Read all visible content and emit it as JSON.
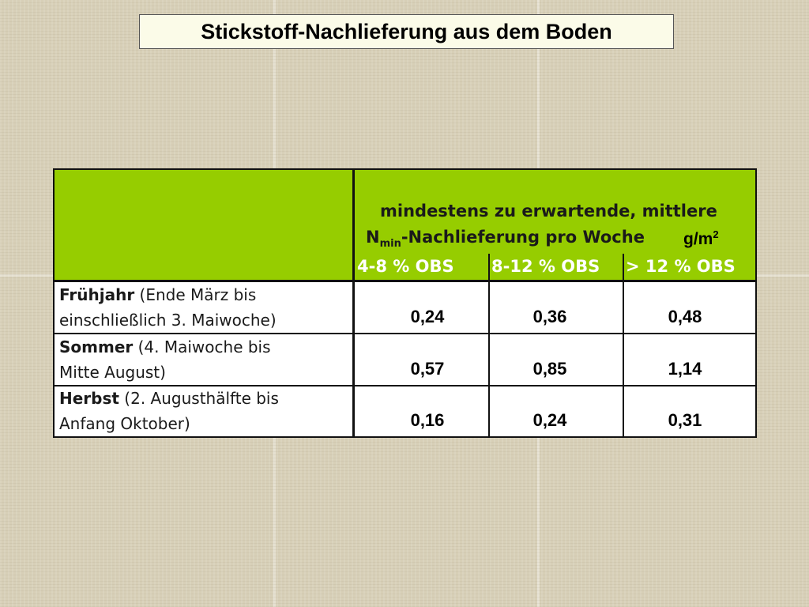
{
  "title": "Stickstoff-Nachlieferung aus dem Boden",
  "table": {
    "header": {
      "caption_line1": "mindestens zu erwartende, mittlere",
      "caption_line2_prefix": "N",
      "caption_line2_subscript": "min",
      "caption_line2_suffix": "-Nachlieferung pro Woche",
      "unit_base": "g/m",
      "unit_exponent": "2",
      "columns": [
        "4-8 % OBS",
        "8-12 % OBS",
        "> 12 % OBS"
      ]
    },
    "rows": [
      {
        "season": "Frühjahr",
        "period_line1": " (Ende März bis",
        "period_line2": "einschließlich 3. Maiwoche)",
        "values": [
          "0,24",
          "0,36",
          "0,48"
        ]
      },
      {
        "season": "Sommer",
        "period_line1": " (4. Maiwoche bis",
        "period_line2": "Mitte August)",
        "values": [
          "0,57",
          "0,85",
          "1,14"
        ]
      },
      {
        "season": "Herbst",
        "period_line1": " (2. Augusthälfte bis",
        "period_line2": "Anfang Oktober)",
        "values": [
          "0,16",
          "0,24",
          "0,31"
        ]
      }
    ]
  },
  "colors": {
    "header_green": "#96cd00",
    "title_background": "#fbfbe8",
    "page_background": "#d7cfb7"
  }
}
